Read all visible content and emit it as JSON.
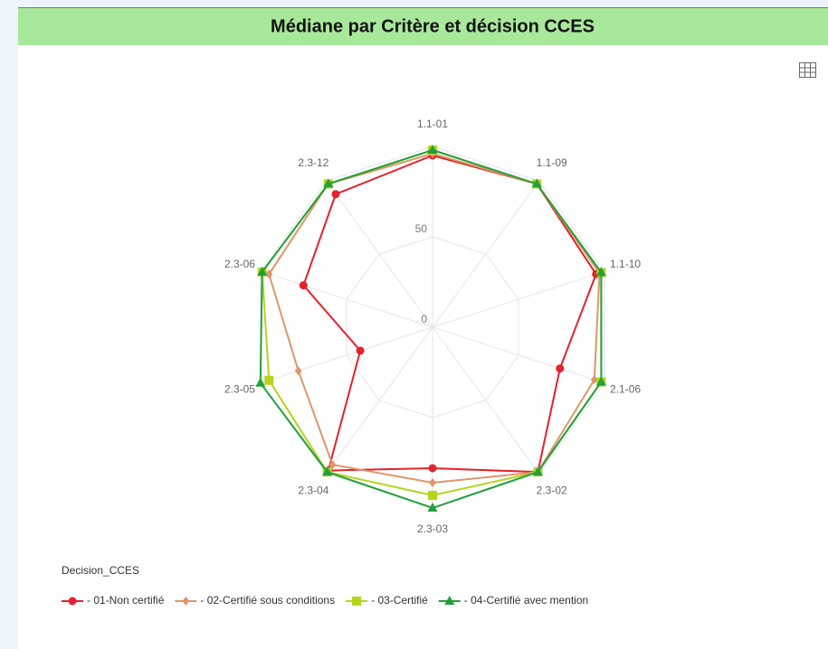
{
  "chart_data": {
    "type": "radar",
    "title": "Médiane par Critère et décision CCES",
    "categories": [
      "1.1-01",
      "1.1-09",
      "1.1-10",
      "2.1-06",
      "2.3-02",
      "2.3-03",
      "2.3-04",
      "2.3-05",
      "2.3-06",
      "2.3-12"
    ],
    "ylim": [
      0,
      100
    ],
    "yticks": [
      0,
      50
    ],
    "grid": true,
    "legend_title": "Decision_CCES",
    "legend": "bottom-left",
    "series": [
      {
        "name": "- 01-Non certifié",
        "color": "#e3222b",
        "marker": "circle",
        "values": [
          95,
          98,
          95,
          74,
          99,
          78,
          98,
          42,
          75,
          91
        ]
      },
      {
        "name": "- 02-Certifié sous conditions",
        "color": "#e0956a",
        "marker": "diamond",
        "values": [
          96,
          98,
          97,
          94,
          99,
          86,
          94,
          78,
          95,
          98
        ]
      },
      {
        "name": "- 03-Certifié",
        "color": "#b5d41c",
        "marker": "square",
        "values": [
          98,
          98,
          98,
          98,
          99,
          93,
          99,
          95,
          99,
          98
        ]
      },
      {
        "name": "- 04-Certifié avec mention",
        "color": "#22a03c",
        "marker": "triangle",
        "values": [
          98,
          98,
          98,
          98,
          99,
          100,
          99,
          100,
          99,
          98
        ]
      }
    ]
  }
}
